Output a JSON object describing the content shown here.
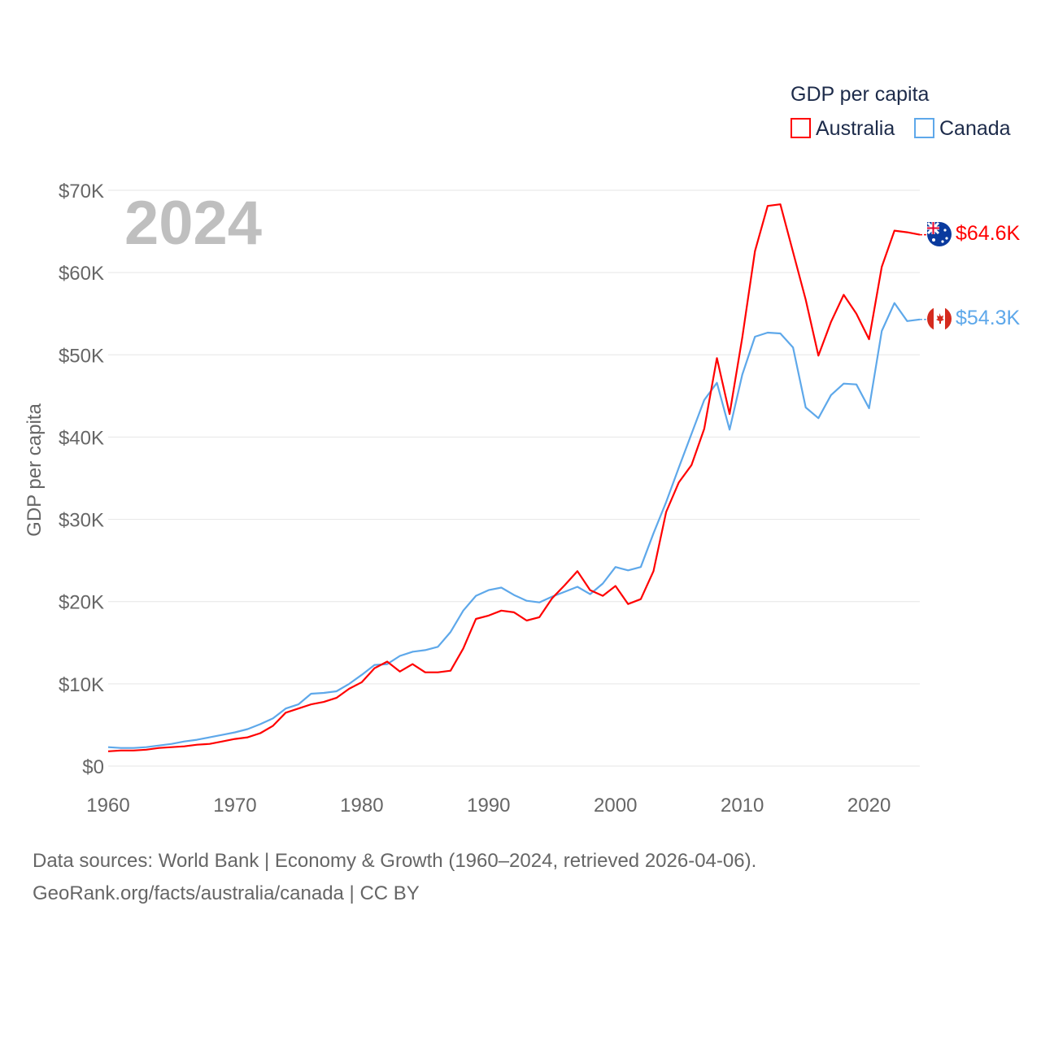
{
  "chart_data": {
    "type": "line",
    "legend_title": "GDP per capita",
    "legend_position": "top-right",
    "ylabel": "GDP per capita",
    "xlabel": "",
    "year_label": "2024",
    "xlim": [
      1960,
      2024
    ],
    "ylim": [
      0,
      70
    ],
    "x_ticks": [
      "1960",
      "1970",
      "1980",
      "1990",
      "2000",
      "2010",
      "2020"
    ],
    "y_ticks": [
      "$0",
      "$10K",
      "$20K",
      "$30K",
      "$40K",
      "$50K",
      "$60K",
      "$70K"
    ],
    "grid": true,
    "units": "thousand USD",
    "x": [
      1960,
      1961,
      1962,
      1963,
      1964,
      1965,
      1966,
      1967,
      1968,
      1969,
      1970,
      1971,
      1972,
      1973,
      1974,
      1975,
      1976,
      1977,
      1978,
      1979,
      1980,
      1981,
      1982,
      1983,
      1984,
      1985,
      1986,
      1987,
      1988,
      1989,
      1990,
      1991,
      1992,
      1993,
      1994,
      1995,
      1996,
      1997,
      1998,
      1999,
      2000,
      2001,
      2002,
      2003,
      2004,
      2005,
      2006,
      2007,
      2008,
      2009,
      2010,
      2011,
      2012,
      2013,
      2014,
      2015,
      2016,
      2017,
      2018,
      2019,
      2020,
      2021,
      2022,
      2023,
      2024
    ],
    "series": [
      {
        "name": "Australia",
        "color": "#ff0000",
        "end_label": "$64.6K",
        "flag": "australia-flag",
        "values": [
          1.8,
          1.9,
          1.9,
          2.0,
          2.2,
          2.3,
          2.4,
          2.6,
          2.7,
          3.0,
          3.3,
          3.5,
          4.0,
          4.9,
          6.5,
          7.0,
          7.5,
          7.8,
          8.3,
          9.4,
          10.2,
          11.9,
          12.7,
          11.5,
          12.4,
          11.4,
          11.4,
          11.6,
          14.3,
          17.9,
          18.3,
          18.9,
          18.7,
          17.7,
          18.1,
          20.4,
          22.0,
          23.7,
          21.4,
          20.7,
          21.9,
          19.7,
          20.3,
          23.7,
          30.9,
          34.5,
          36.6,
          41.0,
          49.6,
          42.8,
          52.1,
          62.6,
          68.1,
          68.3,
          62.5,
          56.7,
          49.9,
          54.0,
          57.3,
          55.0,
          51.9,
          60.7,
          65.1,
          64.9,
          64.6
        ]
      },
      {
        "name": "Canada",
        "color": "#5ea8ea",
        "end_label": "$54.3K",
        "flag": "canada-flag",
        "values": [
          2.3,
          2.2,
          2.2,
          2.3,
          2.5,
          2.7,
          3.0,
          3.2,
          3.5,
          3.8,
          4.1,
          4.5,
          5.1,
          5.8,
          7.0,
          7.5,
          8.8,
          8.9,
          9.1,
          10.0,
          11.1,
          12.3,
          12.4,
          13.4,
          13.9,
          14.1,
          14.5,
          16.3,
          18.9,
          20.7,
          21.4,
          21.7,
          20.8,
          20.1,
          19.9,
          20.6,
          21.2,
          21.8,
          20.9,
          22.2,
          24.2,
          23.8,
          24.2,
          28.3,
          32.1,
          36.3,
          40.4,
          44.5,
          46.6,
          40.9,
          47.6,
          52.2,
          52.7,
          52.6,
          50.9,
          43.6,
          42.3,
          45.1,
          46.5,
          46.4,
          43.5,
          52.9,
          56.3,
          54.1,
          54.3
        ]
      }
    ]
  },
  "footer": {
    "line1": "Data sources: World Bank | Economy & Growth (1960–2024, retrieved 2026-04-06).",
    "line2": "GeoRank.org/facts/australia/canada | CC BY"
  }
}
